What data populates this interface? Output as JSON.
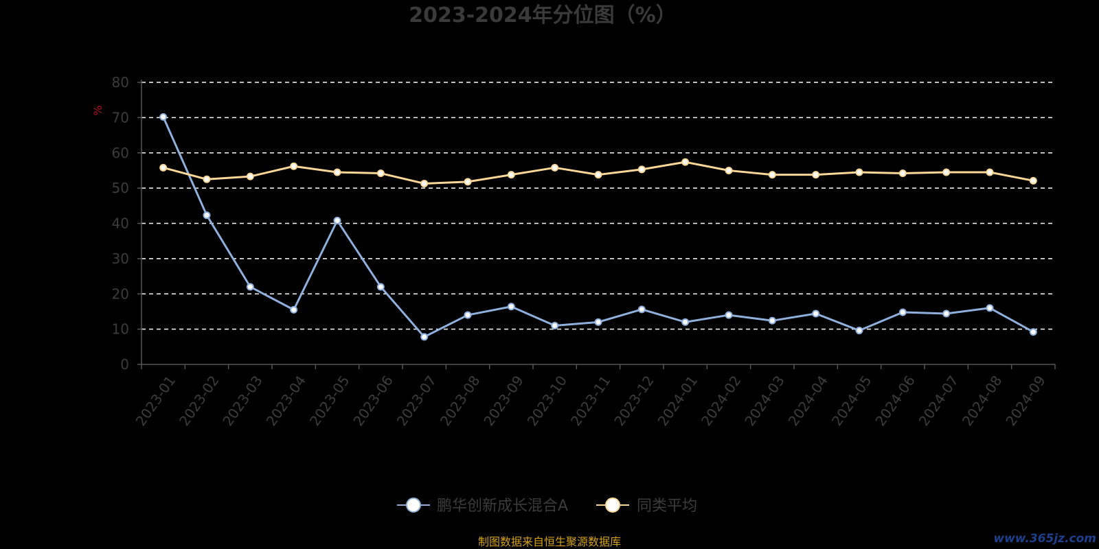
{
  "chart_data": {
    "type": "line",
    "title": "2023-2024年分位图（%）",
    "ylabel": "%",
    "ylim": [
      0,
      80
    ],
    "yticks": [
      "0",
      "10",
      "20",
      "30",
      "40",
      "50",
      "60",
      "70",
      "80"
    ],
    "categories": [
      "2023-01",
      "2023-02",
      "2023-03",
      "2023-04",
      "2023-05",
      "2023-06",
      "2023-07",
      "2023-08",
      "2023-09",
      "2023-10",
      "2023-11",
      "2023-12",
      "2024-01",
      "2024-02",
      "2024-03",
      "2024-04",
      "2024-05",
      "2024-06",
      "2024-07",
      "2024-08",
      "2024-09"
    ],
    "series": [
      {
        "name": "鹏华创新成长混合A",
        "color": "#8fb0dc",
        "values": [
          70.2,
          42.3,
          22.0,
          15.5,
          40.8,
          22.0,
          7.8,
          14.0,
          16.4,
          11.0,
          12.0,
          15.6,
          12.0,
          14.0,
          12.4,
          14.4,
          9.6,
          14.8,
          14.4,
          16.0,
          9.2
        ]
      },
      {
        "name": "同类平均",
        "color": "#fad797",
        "values": [
          55.8,
          52.5,
          53.3,
          56.2,
          54.5,
          54.2,
          51.3,
          51.8,
          53.8,
          55.8,
          53.8,
          55.3,
          57.4,
          55.0,
          53.8,
          53.8,
          54.5,
          54.2,
          54.5,
          54.5,
          52.1
        ]
      }
    ],
    "grid": true,
    "grid_style": "dashed",
    "legend_position": "bottom-center",
    "marker_fill": "#ffffff"
  },
  "footer": {
    "source": "制图数据来自恒生聚源数据库",
    "watermark": "www.365jz.com"
  },
  "colors": {
    "background": "#000000",
    "title": "#3a3a3a",
    "tick_labels": "#3c3c3c",
    "axis": "#555555",
    "gridline": "#ffffff",
    "unit": "#b0141e",
    "source": "#d4a017",
    "watermark": "#1d3f8c"
  }
}
